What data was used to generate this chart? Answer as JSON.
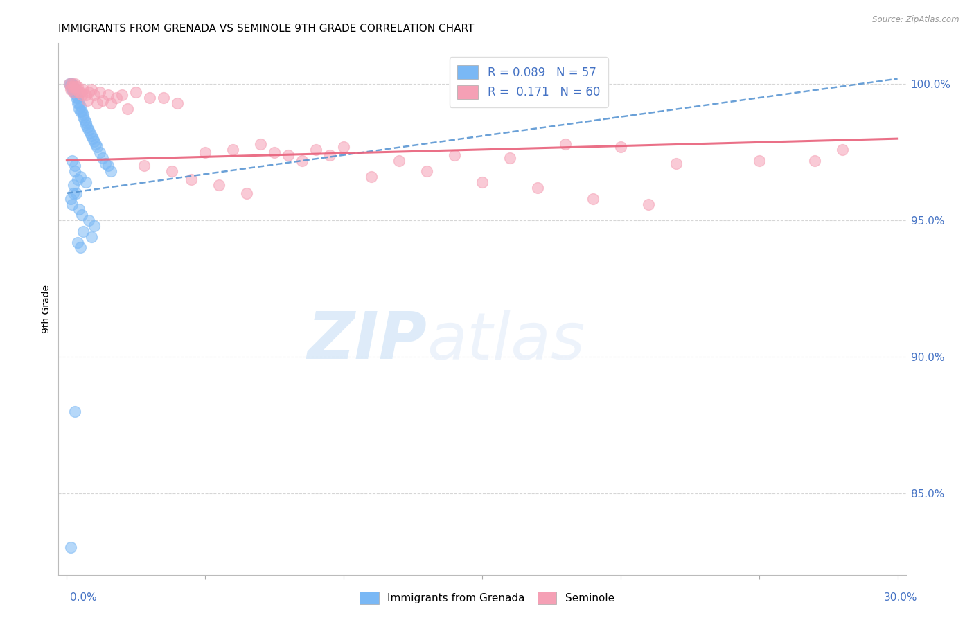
{
  "title": "IMMIGRANTS FROM GRENADA VS SEMINOLE 9TH GRADE CORRELATION CHART",
  "source": "Source: ZipAtlas.com",
  "ylabel": "9th Grade",
  "blue_color": "#7ab8f5",
  "pink_color": "#f5a0b5",
  "blue_line_color": "#5090d0",
  "pink_line_color": "#e8607a",
  "legend_text_color": "#4472c4",
  "ytick_color": "#4472c4",
  "xtick_color": "#4472c4",
  "grid_color": "#cccccc",
  "title_fontsize": 11,
  "scatter_size": 130,
  "scatter_alpha": 0.55,
  "blue_scatter_x": [
    0.001,
    0.0015,
    0.0015,
    0.002,
    0.002,
    0.0025,
    0.0025,
    0.003,
    0.003,
    0.0035,
    0.0035,
    0.004,
    0.004,
    0.0045,
    0.0045,
    0.005,
    0.005,
    0.0055,
    0.006,
    0.006,
    0.0065,
    0.007,
    0.007,
    0.0075,
    0.008,
    0.0085,
    0.009,
    0.0095,
    0.01,
    0.0105,
    0.011,
    0.012,
    0.013,
    0.014,
    0.015,
    0.016,
    0.003,
    0.005,
    0.007,
    0.002,
    0.003,
    0.004,
    0.0025,
    0.0035,
    0.0015,
    0.002,
    0.0045,
    0.0055,
    0.008,
    0.01,
    0.006,
    0.009,
    0.004,
    0.0025,
    0.005,
    0.003,
    0.0015
  ],
  "blue_scatter_y": [
    1.0,
    1.0,
    0.999,
    1.0,
    0.998,
    0.999,
    0.997,
    0.998,
    0.997,
    0.996,
    0.995,
    0.995,
    0.993,
    0.993,
    0.991,
    0.992,
    0.99,
    0.99,
    0.989,
    0.988,
    0.987,
    0.986,
    0.985,
    0.984,
    0.983,
    0.982,
    0.981,
    0.98,
    0.979,
    0.978,
    0.977,
    0.975,
    0.973,
    0.971,
    0.97,
    0.968,
    0.97,
    0.966,
    0.964,
    0.972,
    0.968,
    0.965,
    0.963,
    0.96,
    0.958,
    0.956,
    0.954,
    0.952,
    0.95,
    0.948,
    0.946,
    0.944,
    0.942,
    0.96,
    0.94,
    0.88,
    0.83
  ],
  "pink_scatter_x": [
    0.001,
    0.0015,
    0.002,
    0.0025,
    0.003,
    0.0035,
    0.004,
    0.005,
    0.006,
    0.007,
    0.008,
    0.009,
    0.01,
    0.012,
    0.015,
    0.018,
    0.02,
    0.025,
    0.03,
    0.035,
    0.04,
    0.05,
    0.06,
    0.07,
    0.08,
    0.09,
    0.1,
    0.12,
    0.14,
    0.16,
    0.18,
    0.2,
    0.22,
    0.25,
    0.28,
    0.0015,
    0.0025,
    0.0035,
    0.0045,
    0.0055,
    0.0075,
    0.011,
    0.013,
    0.016,
    0.022,
    0.028,
    0.038,
    0.045,
    0.055,
    0.065,
    0.075,
    0.085,
    0.095,
    0.11,
    0.13,
    0.15,
    0.17,
    0.19,
    0.21,
    0.27
  ],
  "pink_scatter_y": [
    1.0,
    0.999,
    1.0,
    0.999,
    1.0,
    0.998,
    0.999,
    0.997,
    0.998,
    0.996,
    0.997,
    0.998,
    0.996,
    0.997,
    0.996,
    0.995,
    0.996,
    0.997,
    0.995,
    0.995,
    0.993,
    0.975,
    0.976,
    0.978,
    0.974,
    0.976,
    0.977,
    0.972,
    0.974,
    0.973,
    0.978,
    0.977,
    0.971,
    0.972,
    0.976,
    0.998,
    0.997,
    0.999,
    0.997,
    0.996,
    0.994,
    0.993,
    0.994,
    0.993,
    0.991,
    0.97,
    0.968,
    0.965,
    0.963,
    0.96,
    0.975,
    0.972,
    0.974,
    0.966,
    0.968,
    0.964,
    0.962,
    0.958,
    0.956,
    0.972
  ],
  "blue_line_x": [
    0.0,
    0.3
  ],
  "blue_line_y": [
    0.96,
    1.002
  ],
  "pink_line_x": [
    0.0,
    0.3
  ],
  "pink_line_y": [
    0.972,
    0.98
  ],
  "xlim": [
    -0.003,
    0.303
  ],
  "ylim": [
    0.82,
    1.015
  ],
  "ytick_positions": [
    0.85,
    0.9,
    0.95,
    1.0
  ],
  "ytick_labels": [
    "85.0%",
    "90.0%",
    "95.0%",
    "100.0%"
  ],
  "watermark_zip": "ZIP",
  "watermark_atlas": "atlas"
}
